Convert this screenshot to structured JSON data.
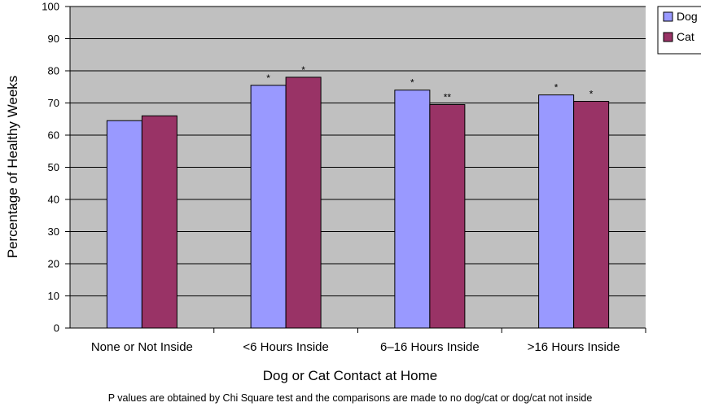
{
  "chart_data": {
    "type": "bar",
    "categories": [
      "None or Not Inside",
      "<6 Hours Inside",
      "6–16 Hours Inside",
      ">16 Hours Inside"
    ],
    "series": [
      {
        "name": "Dog",
        "values": [
          64.5,
          75.5,
          74,
          72.5
        ],
        "annotations": [
          "",
          "*",
          "*",
          "*"
        ],
        "color": "#9999ff"
      },
      {
        "name": "Cat",
        "values": [
          66,
          78,
          69.5,
          70.5
        ],
        "annotations": [
          "",
          "*",
          "**",
          "*"
        ],
        "color": "#993366"
      }
    ],
    "xlabel": "Dog or Cat Contact at Home",
    "ylabel": "Percentage of Healthy Weeks",
    "ylim": [
      0,
      100
    ],
    "yticks": [
      "0",
      "10",
      "20",
      "30",
      "40",
      "50",
      "60",
      "70",
      "80",
      "90",
      "100"
    ],
    "grid": true,
    "legend_position": "top-right",
    "plot_background": "#c0c0c0",
    "footnote": "P values are obtained by Chi Square test and the comparisons are made to no dog/cat or dog/cat not inside"
  }
}
